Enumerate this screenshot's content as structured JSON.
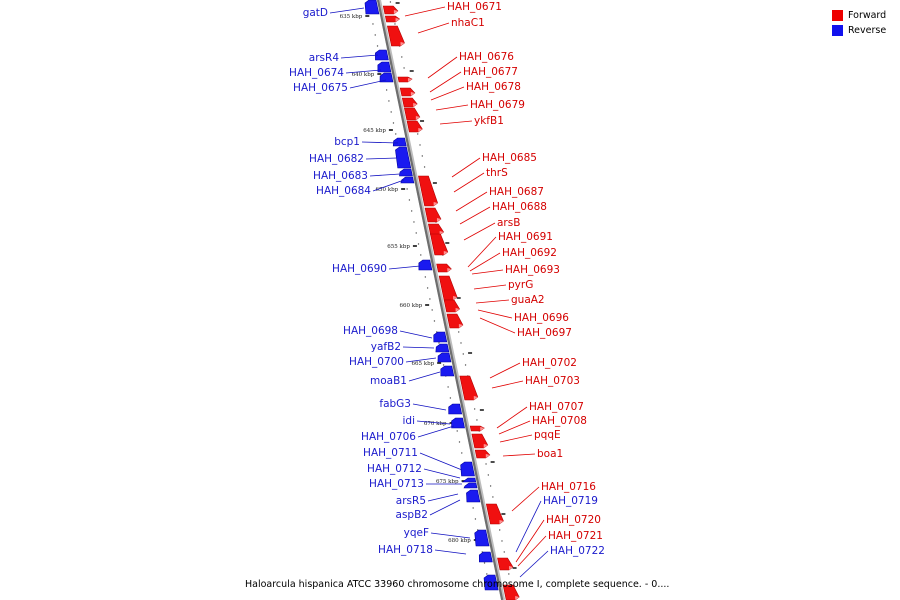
{
  "legend": {
    "forward": {
      "label": "Forward",
      "color": "#ee0000"
    },
    "reverse": {
      "label": "Reverse",
      "color": "#1111ee"
    }
  },
  "caption": "Haloarcula hispanica ATCC 33960 chromosome chromosome I, complete sequence. - 0....",
  "scale_ticks": [
    "635 kbp",
    "640 kbp",
    "645 kbp",
    "650 kbp",
    "655 kbp",
    "660 kbp",
    "665 kbp",
    "670 kbp",
    "675 kbp",
    "680 kbp"
  ],
  "forward_genes": [
    "HAH_0671",
    "nhaC1",
    "HAH_0676",
    "HAH_0677",
    "HAH_0678",
    "HAH_0679",
    "ykfB1",
    "HAH_0685",
    "thrS",
    "HAH_0687",
    "HAH_0688",
    "arsB",
    "HAH_0691",
    "HAH_0692",
    "HAH_0693",
    "pyrG",
    "guaA2",
    "HAH_0696",
    "HAH_0697",
    "HAH_0702",
    "HAH_0703",
    "HAH_0707",
    "HAH_0708",
    "pqqE",
    "boa1",
    "HAH_0716",
    "HAH_0720",
    "HAH_0721"
  ],
  "reverse_genes": [
    "gatD",
    "arsR4",
    "HAH_0674",
    "HAH_0675",
    "bcp1",
    "HAH_0682",
    "HAH_0683",
    "HAH_0684",
    "HAH_0690",
    "HAH_0698",
    "yafB2",
    "HAH_0700",
    "moaB1",
    "fabG3",
    "idi",
    "HAH_0706",
    "HAH_0711",
    "HAH_0712",
    "HAH_0713",
    "arsR5",
    "aspB2",
    "yqeF",
    "HAH_0718",
    "HAH_0719",
    "HAH_0722"
  ]
}
